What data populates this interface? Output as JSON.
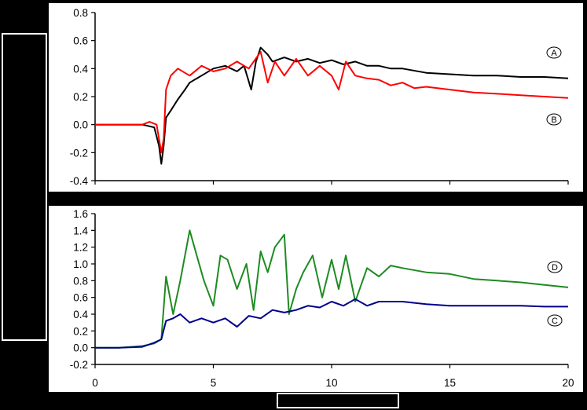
{
  "chart_data": [
    {
      "type": "line",
      "panel": "top",
      "xlim": [
        0,
        20
      ],
      "ylim": [
        -0.4,
        0.8
      ],
      "yticks": [
        -0.4,
        -0.2,
        0.0,
        0.2,
        0.4,
        0.6,
        0.8
      ],
      "ytick_labels": [
        "-0.4",
        "-0.2",
        "0.0",
        "0.2",
        "0.4",
        "0.6",
        "0.8"
      ],
      "xticks": [
        0,
        5,
        10,
        15,
        20
      ],
      "xtick_labels": [],
      "grid": false,
      "series": [
        {
          "name": "A",
          "color": "#000000",
          "x": [
            0,
            1,
            2,
            2.5,
            2.7,
            2.8,
            2.9,
            3.0,
            3.2,
            3.5,
            3.8,
            4.0,
            4.5,
            5.0,
            5.5,
            6.0,
            6.3,
            6.6,
            6.8,
            7.0,
            7.3,
            7.5,
            8.0,
            8.5,
            9.0,
            9.5,
            10.0,
            10.5,
            11.0,
            11.5,
            12.0,
            12.5,
            13.0,
            14.0,
            15.0,
            16.0,
            17.0,
            18.0,
            19.0,
            20.0
          ],
          "y": [
            0.0,
            0.0,
            0.0,
            -0.02,
            -0.15,
            -0.28,
            -0.15,
            0.05,
            0.1,
            0.18,
            0.25,
            0.3,
            0.35,
            0.4,
            0.42,
            0.38,
            0.42,
            0.25,
            0.45,
            0.55,
            0.5,
            0.45,
            0.48,
            0.45,
            0.47,
            0.44,
            0.46,
            0.43,
            0.45,
            0.42,
            0.42,
            0.4,
            0.4,
            0.37,
            0.36,
            0.35,
            0.35,
            0.34,
            0.34,
            0.33
          ]
        },
        {
          "name": "B",
          "color": "#ff0000",
          "x": [
            0,
            1,
            2,
            2.3,
            2.6,
            2.8,
            2.9,
            3.0,
            3.2,
            3.5,
            4.0,
            4.5,
            5.0,
            5.5,
            6.0,
            6.5,
            7.0,
            7.3,
            7.6,
            8.0,
            8.5,
            9.0,
            9.5,
            10.0,
            10.3,
            10.6,
            11.0,
            11.5,
            12.0,
            12.5,
            13.0,
            13.5,
            14.0,
            15.0,
            16.0,
            17.0,
            18.0,
            19.0,
            20.0
          ],
          "y": [
            0.0,
            0.0,
            0.0,
            0.02,
            0.0,
            -0.2,
            -0.1,
            0.25,
            0.35,
            0.4,
            0.35,
            0.42,
            0.38,
            0.4,
            0.45,
            0.4,
            0.52,
            0.3,
            0.45,
            0.35,
            0.47,
            0.35,
            0.42,
            0.35,
            0.25,
            0.45,
            0.35,
            0.33,
            0.32,
            0.28,
            0.3,
            0.26,
            0.27,
            0.25,
            0.23,
            0.22,
            0.21,
            0.2,
            0.19
          ]
        }
      ]
    },
    {
      "type": "line",
      "panel": "bottom",
      "xlim": [
        0,
        20
      ],
      "ylim": [
        -0.2,
        1.6
      ],
      "yticks": [
        -0.2,
        0.0,
        0.2,
        0.4,
        0.6,
        0.8,
        1.0,
        1.2,
        1.4,
        1.6
      ],
      "ytick_labels": [
        "-0.2",
        "0.0",
        "0.2",
        "0.4",
        "0.6",
        "0.8",
        "1.0",
        "1.2",
        "1.4",
        "1.6"
      ],
      "xticks": [
        0,
        5,
        10,
        15,
        20
      ],
      "xtick_labels": [
        "0",
        "5",
        "10",
        "15",
        "20"
      ],
      "grid": false,
      "series": [
        {
          "name": "D",
          "color": "#1e8b22",
          "x": [
            0,
            1,
            2,
            2.5,
            2.8,
            3.0,
            3.3,
            3.6,
            4.0,
            4.3,
            4.6,
            5.0,
            5.3,
            5.6,
            6.0,
            6.4,
            6.7,
            7.0,
            7.3,
            7.6,
            8.0,
            8.2,
            8.5,
            8.8,
            9.2,
            9.6,
            10.0,
            10.3,
            10.6,
            11.0,
            11.5,
            12.0,
            12.5,
            13.0,
            14.0,
            15.0,
            16.0,
            17.0,
            18.0,
            19.0,
            20.0
          ],
          "y": [
            0.0,
            0.0,
            0.02,
            0.05,
            0.1,
            0.85,
            0.4,
            0.8,
            1.4,
            1.1,
            0.8,
            0.5,
            1.1,
            1.05,
            0.7,
            1.0,
            0.45,
            1.15,
            0.9,
            1.2,
            1.35,
            0.4,
            0.7,
            0.9,
            1.1,
            0.6,
            1.05,
            0.7,
            1.1,
            0.55,
            0.95,
            0.85,
            0.98,
            0.95,
            0.9,
            0.88,
            0.82,
            0.8,
            0.78,
            0.75,
            0.72
          ]
        },
        {
          "name": "C",
          "color": "#00008b",
          "x": [
            0,
            1,
            2,
            2.5,
            2.8,
            3.0,
            3.3,
            3.6,
            4.0,
            4.5,
            5.0,
            5.5,
            6.0,
            6.5,
            7.0,
            7.5,
            8.0,
            8.5,
            9.0,
            9.5,
            10.0,
            10.5,
            11.0,
            11.5,
            12.0,
            13.0,
            14.0,
            15.0,
            16.0,
            17.0,
            18.0,
            19.0,
            20.0
          ],
          "y": [
            0.0,
            0.0,
            0.01,
            0.06,
            0.1,
            0.32,
            0.35,
            0.4,
            0.3,
            0.35,
            0.3,
            0.35,
            0.25,
            0.38,
            0.35,
            0.45,
            0.42,
            0.45,
            0.5,
            0.48,
            0.55,
            0.5,
            0.58,
            0.5,
            0.55,
            0.55,
            0.52,
            0.5,
            0.5,
            0.5,
            0.5,
            0.49,
            0.49
          ]
        }
      ]
    }
  ],
  "markers": [
    {
      "label": "A",
      "panel": "top"
    },
    {
      "label": "B",
      "panel": "top"
    },
    {
      "label": "D",
      "panel": "bottom"
    },
    {
      "label": "C",
      "panel": "bottom"
    }
  ]
}
